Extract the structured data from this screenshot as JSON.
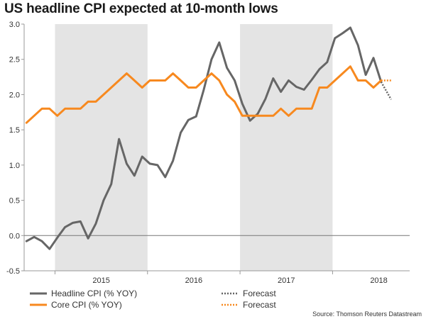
{
  "chart_data": {
    "type": "line",
    "title": "US headline CPI expected at 10-month lows",
    "xlabel": "",
    "ylabel": "",
    "ylim": [
      -0.5,
      3.0
    ],
    "yticks": [
      "3.0",
      "2.5",
      "2.0",
      "1.5",
      "1.0",
      "0.5",
      "0.0",
      "-0.5"
    ],
    "ytick_values": [
      3.0,
      2.5,
      2.0,
      1.5,
      1.0,
      0.5,
      0.0,
      -0.5
    ],
    "year_labels": [
      "2015",
      "2016",
      "2017",
      "2018"
    ],
    "shaded_years": [
      "2015",
      "2017"
    ],
    "x_start": "2014-09",
    "x_end": "2018-10",
    "series": [
      {
        "name": "Headline CPI (% YOY)",
        "color": "#666666",
        "values": [
          -0.08,
          -0.02,
          -0.08,
          -0.19,
          -0.03,
          0.12,
          0.18,
          0.2,
          -0.04,
          0.17,
          0.5,
          0.73,
          1.37,
          1.02,
          0.85,
          1.12,
          1.02,
          1.0,
          0.83,
          1.06,
          1.46,
          1.64,
          1.69,
          2.07,
          2.5,
          2.74,
          2.38,
          2.2,
          1.87,
          1.63,
          1.73,
          1.94,
          2.23,
          2.04,
          2.2,
          2.11,
          2.07,
          2.21,
          2.36,
          2.46,
          2.8,
          2.87,
          2.95,
          2.7,
          2.28,
          2.52,
          2.18
        ]
      },
      {
        "name": "Core CPI (% YOY)",
        "color": "#f7891f",
        "values": [
          1.6,
          1.7,
          1.8,
          1.8,
          1.7,
          1.8,
          1.8,
          1.8,
          1.9,
          1.9,
          2.0,
          2.1,
          2.2,
          2.3,
          2.2,
          2.1,
          2.2,
          2.2,
          2.2,
          2.3,
          2.2,
          2.1,
          2.1,
          2.2,
          2.3,
          2.2,
          2.0,
          1.9,
          1.7,
          1.7,
          1.7,
          1.7,
          1.7,
          1.8,
          1.7,
          1.8,
          1.8,
          1.8,
          2.1,
          2.1,
          2.2,
          2.3,
          2.4,
          2.2,
          2.2,
          2.1,
          2.2
        ]
      }
    ],
    "forecast": [
      {
        "name": "Forecast",
        "color": "#666666",
        "values": [
          2.18,
          1.93
        ]
      },
      {
        "name": "Forecast",
        "color": "#f7891f",
        "values": [
          2.2,
          2.2
        ]
      }
    ],
    "source": "Source: Thomson Reuters Datastream"
  },
  "colors": {
    "shade": "#e4e4e4",
    "axis": "#999999"
  }
}
